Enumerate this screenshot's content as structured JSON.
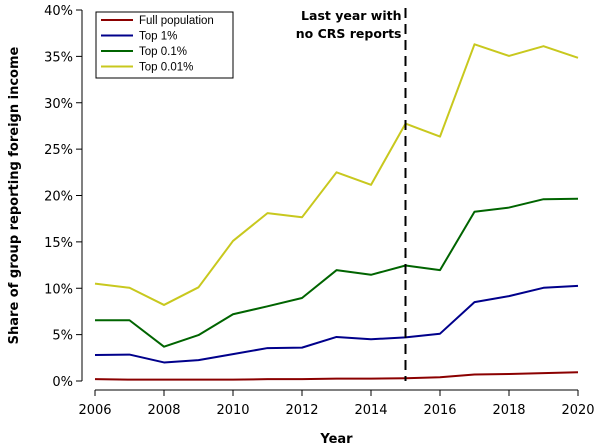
{
  "chart_data": {
    "type": "line",
    "title": "",
    "xlabel": "Year",
    "ylabel": "Share of group reporting foreign income",
    "xlim": [
      2006,
      2020
    ],
    "ylim": [
      0,
      40
    ],
    "x": [
      2006,
      2007,
      2008,
      2009,
      2010,
      2011,
      2012,
      2013,
      2014,
      2015,
      2016,
      2017,
      2018,
      2019,
      2020
    ],
    "x_ticks": [
      2006,
      2008,
      2010,
      2012,
      2014,
      2016,
      2018,
      2020
    ],
    "x_tick_labels": [
      "2006",
      "2008",
      "2010",
      "2012",
      "2014",
      "2016",
      "2018",
      "2020"
    ],
    "y_ticks": [
      0,
      5,
      10,
      15,
      20,
      25,
      30,
      35,
      40
    ],
    "y_tick_labels": [
      "0%",
      "5%",
      "10%",
      "15%",
      "20%",
      "25%",
      "30%",
      "35%",
      "40%"
    ],
    "grid": false,
    "legend_position": "top-left",
    "series": [
      {
        "name": "Full population",
        "color": "#8b0000",
        "values": [
          0.2,
          0.15,
          0.15,
          0.15,
          0.15,
          0.2,
          0.2,
          0.25,
          0.25,
          0.3,
          0.4,
          0.7,
          0.75,
          0.85,
          0.95
        ]
      },
      {
        "name": "Top 1%",
        "color": "#00008b",
        "values": [
          2.8,
          2.85,
          2.0,
          2.25,
          2.9,
          3.55,
          3.6,
          4.75,
          4.5,
          4.7,
          5.1,
          8.5,
          9.15,
          10.05,
          10.25
        ]
      },
      {
        "name": "Top 0.1%",
        "color": "#006400",
        "values": [
          6.55,
          6.55,
          3.7,
          4.95,
          7.2,
          8.05,
          8.95,
          11.95,
          11.45,
          12.45,
          11.95,
          18.25,
          18.7,
          19.6,
          19.65
        ]
      },
      {
        "name": "Top 0.01%",
        "color": "#c8c81e",
        "values": [
          10.5,
          10.05,
          8.2,
          10.1,
          15.1,
          18.1,
          17.65,
          22.5,
          21.15,
          27.75,
          26.35,
          36.3,
          35.05,
          36.1,
          34.85
        ]
      }
    ],
    "annotations": [
      {
        "x": 2015,
        "style": "dashed vertical line",
        "text_lines": [
          "Last year with",
          "no CRS reports"
        ]
      }
    ]
  }
}
